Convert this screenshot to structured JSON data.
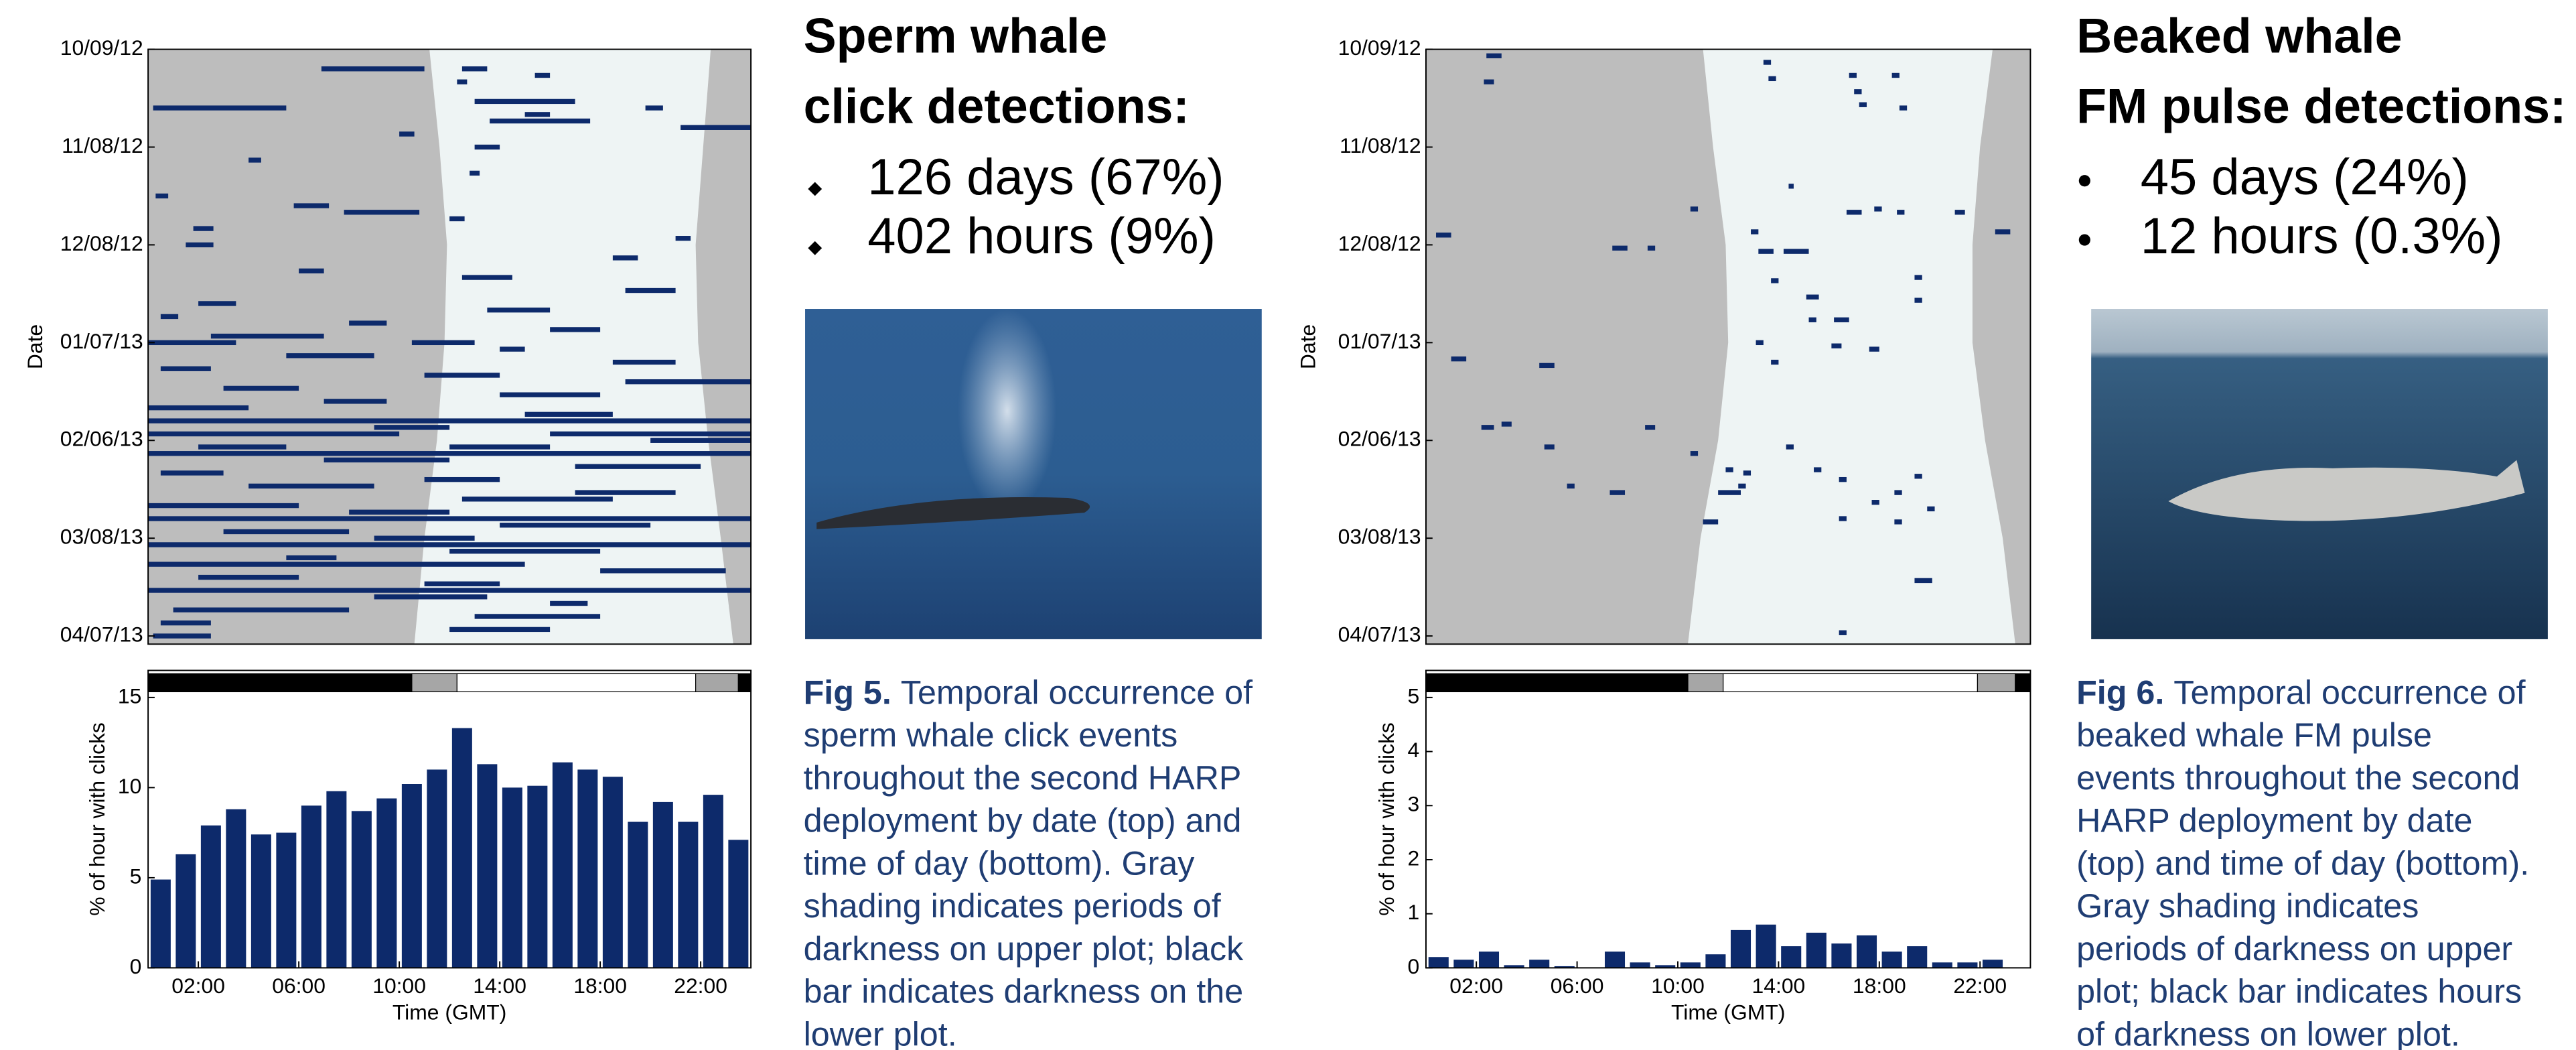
{
  "chart_data": [
    {
      "type": "raster",
      "ylabel": "Date",
      "xlim": [
        0,
        24
      ],
      "ylim": [
        0,
        182.5
      ],
      "yticks": [
        {
          "value": 0,
          "label": "10/09/12"
        },
        {
          "value": 30,
          "label": "11/08/12"
        },
        {
          "value": 60,
          "label": "12/08/12"
        },
        {
          "value": 90,
          "label": "01/07/13"
        },
        {
          "value": 120,
          "label": "02/06/13"
        },
        {
          "value": 150,
          "label": "03/08/13"
        },
        {
          "value": 180,
          "label": "04/07/13"
        }
      ],
      "darkness_color": "#bdbdbd",
      "daylight_color": "#eef4f4",
      "color": "#0d2a6b",
      "daylight_days": [
        0,
        30,
        60,
        90,
        120,
        150,
        182.5
      ],
      "sunrise": [
        11.2,
        11.6,
        11.9,
        11.8,
        11.5,
        11.0,
        10.6
      ],
      "sunset": [
        22.4,
        22.1,
        21.8,
        21.9,
        22.3,
        22.8,
        23.3
      ],
      "detections": [
        [
          6,
          6.9,
          11.0
        ],
        [
          6,
          12.5,
          13.5
        ],
        [
          8,
          15.4,
          16.0
        ],
        [
          10,
          12.3,
          12.7
        ],
        [
          16,
          13.0,
          17.0
        ],
        [
          18,
          0.2,
          5.5
        ],
        [
          18,
          19.8,
          20.5
        ],
        [
          20,
          15.0,
          16.0
        ],
        [
          22,
          13.6,
          17.6
        ],
        [
          24,
          21.2,
          24.0
        ],
        [
          26,
          10.0,
          10.6
        ],
        [
          30,
          13.0,
          14.0
        ],
        [
          34,
          4.0,
          4.5
        ],
        [
          38,
          12.8,
          13.2
        ],
        [
          45,
          0.3,
          0.8
        ],
        [
          48,
          5.8,
          7.2
        ],
        [
          50,
          7.8,
          10.8
        ],
        [
          52,
          12.0,
          12.6
        ],
        [
          55,
          1.8,
          2.6
        ],
        [
          58,
          21.0,
          21.6
        ],
        [
          60,
          1.5,
          2.6
        ],
        [
          64,
          18.5,
          19.5
        ],
        [
          68,
          6.0,
          7.0
        ],
        [
          70,
          12.5,
          14.5
        ],
        [
          74,
          19.0,
          21.0
        ],
        [
          78,
          2.0,
          3.5
        ],
        [
          80,
          13.5,
          16.0
        ],
        [
          82,
          0.5,
          1.2
        ],
        [
          84,
          8.0,
          9.5
        ],
        [
          86,
          16.0,
          18.0
        ],
        [
          88,
          2.5,
          7.0
        ],
        [
          90,
          0,
          3.5
        ],
        [
          90,
          10.5,
          13.0
        ],
        [
          92,
          14.0,
          15.0
        ],
        [
          94,
          5.5,
          9.0
        ],
        [
          96,
          18.5,
          21.0
        ],
        [
          98,
          0.5,
          2.5
        ],
        [
          100,
          11.0,
          14.0
        ],
        [
          102,
          19.0,
          24.0
        ],
        [
          104,
          3.0,
          6.0
        ],
        [
          106,
          14.0,
          18.0
        ],
        [
          108,
          7.0,
          9.5
        ],
        [
          110,
          0,
          4.0
        ],
        [
          112,
          15.0,
          18.5
        ],
        [
          114,
          0,
          24.0
        ],
        [
          116,
          9.0,
          12.0
        ],
        [
          118,
          0,
          10.0
        ],
        [
          118,
          16.0,
          24.0
        ],
        [
          120,
          20.0,
          24.0
        ],
        [
          122,
          2.0,
          5.5
        ],
        [
          122,
          12.0,
          16.0
        ],
        [
          124,
          0,
          24.0
        ],
        [
          126,
          7.0,
          12.0
        ],
        [
          128,
          17.0,
          22.0
        ],
        [
          130,
          0.5,
          3.0
        ],
        [
          132,
          11.0,
          14.0
        ],
        [
          134,
          4.0,
          9.0
        ],
        [
          136,
          17.0,
          21.0
        ],
        [
          138,
          12.5,
          18.5
        ],
        [
          140,
          0,
          6.0
        ],
        [
          142,
          8.0,
          12.0
        ],
        [
          144,
          0,
          24.0
        ],
        [
          146,
          14.0,
          20.0
        ],
        [
          148,
          3.0,
          8.0
        ],
        [
          150,
          9.0,
          13.0
        ],
        [
          152,
          0,
          24.0
        ],
        [
          154,
          12.0,
          18.0
        ],
        [
          156,
          5.5,
          7.5
        ],
        [
          158,
          0,
          15.0
        ],
        [
          160,
          18.0,
          23.0
        ],
        [
          162,
          2.0,
          6.0
        ],
        [
          164,
          11.0,
          14.0
        ],
        [
          166,
          0,
          24.0
        ],
        [
          168,
          9.0,
          13.5
        ],
        [
          170,
          16.0,
          17.5
        ],
        [
          172,
          1.0,
          8.0
        ],
        [
          174,
          13.0,
          18.0
        ],
        [
          176,
          0.5,
          2.5
        ],
        [
          178,
          12.0,
          16.0
        ],
        [
          180,
          0.2,
          2.5
        ]
      ]
    },
    {
      "type": "histogram",
      "xlabel": "Time (GMT)",
      "ylabel": "% of hour with clicks",
      "color": "#0d2a6b",
      "xlim": [
        0,
        24
      ],
      "ylim": [
        0,
        16.5
      ],
      "yticks": [
        0,
        5,
        10,
        15
      ],
      "xticks": [
        {
          "value": 2,
          "label": "02:00"
        },
        {
          "value": 6,
          "label": "06:00"
        },
        {
          "value": 10,
          "label": "10:00"
        },
        {
          "value": 14,
          "label": "14:00"
        },
        {
          "value": 18,
          "label": "18:00"
        },
        {
          "value": 22,
          "label": "22:00"
        }
      ],
      "bins": [
        0,
        1,
        2,
        3,
        4,
        5,
        6,
        7,
        8,
        9,
        10,
        11,
        12,
        13,
        14,
        15,
        16,
        17,
        18,
        19,
        20,
        21,
        22,
        23,
        24
      ],
      "values": [
        4.9,
        6.3,
        7.9,
        8.8,
        7.4,
        7.5,
        9.0,
        9.8,
        8.7,
        9.4,
        10.2,
        11.0,
        13.3,
        11.3,
        10.0,
        10.1,
        11.4,
        11.0,
        10.6,
        8.1,
        9.2,
        8.1,
        9.6,
        7.1
      ],
      "darkness_bar": [
        {
          "start": 0,
          "end": 10.5,
          "color": "#000000"
        },
        {
          "start": 10.5,
          "end": 12.3,
          "color": "#a6a6a6"
        },
        {
          "start": 12.3,
          "end": 21.8,
          "color": "#ffffff"
        },
        {
          "start": 21.8,
          "end": 23.5,
          "color": "#a6a6a6"
        },
        {
          "start": 23.5,
          "end": 24,
          "color": "#000000"
        }
      ]
    },
    {
      "type": "raster",
      "ylabel": "Date",
      "xlim": [
        0,
        24
      ],
      "ylim": [
        0,
        182.5
      ],
      "yticks": [
        {
          "value": 0,
          "label": "10/09/12"
        },
        {
          "value": 30,
          "label": "11/08/12"
        },
        {
          "value": 60,
          "label": "12/08/12"
        },
        {
          "value": 90,
          "label": "01/07/13"
        },
        {
          "value": 120,
          "label": "02/06/13"
        },
        {
          "value": 150,
          "label": "03/08/13"
        },
        {
          "value": 180,
          "label": "04/07/13"
        }
      ],
      "darkness_color": "#bdbdbd",
      "daylight_color": "#eef4f4",
      "color": "#0d2a6b",
      "daylight_days": [
        0,
        30,
        60,
        90,
        120,
        150,
        182.5
      ],
      "sunrise": [
        11.0,
        11.4,
        11.9,
        12.0,
        11.6,
        10.9,
        10.4
      ],
      "sunset": [
        22.5,
        22.0,
        21.7,
        21.7,
        22.2,
        22.9,
        23.4
      ],
      "detections": [
        [
          2,
          2.4,
          3.0
        ],
        [
          10,
          2.3,
          2.7
        ],
        [
          57,
          0.4,
          1.0
        ],
        [
          95,
          1.0,
          1.6
        ],
        [
          97,
          4.5,
          5.1
        ],
        [
          116,
          2.2,
          2.7
        ],
        [
          115,
          3.0,
          3.4
        ],
        [
          122,
          4.7,
          5.1
        ],
        [
          134,
          5.6,
          5.9
        ],
        [
          136,
          7.3,
          7.9
        ],
        [
          116,
          8.7,
          9.1
        ],
        [
          61,
          7.4,
          8.0
        ],
        [
          61,
          8.8,
          9.1
        ],
        [
          145,
          11.0,
          11.6
        ],
        [
          136,
          11.6,
          12.5
        ],
        [
          124,
          10.5,
          10.8
        ],
        [
          129,
          11.9,
          12.2
        ],
        [
          130,
          12.6,
          12.9
        ],
        [
          4,
          13.4,
          13.7
        ],
        [
          9,
          13.6,
          13.9
        ],
        [
          42,
          14.4,
          14.6
        ],
        [
          49,
          10.5,
          10.8
        ],
        [
          56,
          12.9,
          13.2
        ],
        [
          62,
          13.2,
          13.8
        ],
        [
          62,
          14.2,
          15.2
        ],
        [
          71,
          13.7,
          14.0
        ],
        [
          76,
          15.1,
          15.6
        ],
        [
          83,
          16.2,
          16.8
        ],
        [
          83,
          15.2,
          15.5
        ],
        [
          91,
          16.1,
          16.5
        ],
        [
          92,
          17.6,
          18.0
        ],
        [
          90,
          13.1,
          13.4
        ],
        [
          96,
          13.7,
          14.0
        ],
        [
          8,
          16.8,
          17.1
        ],
        [
          13,
          17.0,
          17.3
        ],
        [
          17,
          17.2,
          17.5
        ],
        [
          8,
          18.5,
          18.8
        ],
        [
          18,
          18.8,
          19.1
        ],
        [
          50,
          16.7,
          17.3
        ],
        [
          49,
          17.8,
          18.1
        ],
        [
          50,
          18.7,
          19.0
        ],
        [
          70,
          19.4,
          19.7
        ],
        [
          77,
          19.4,
          19.7
        ],
        [
          50,
          21.0,
          21.4
        ],
        [
          56,
          22.6,
          23.2
        ],
        [
          122,
          14.3,
          14.6
        ],
        [
          129,
          15.4,
          15.7
        ],
        [
          132,
          16.4,
          16.7
        ],
        [
          139,
          17.7,
          18.0
        ],
        [
          136,
          18.6,
          18.9
        ],
        [
          131,
          19.4,
          19.7
        ],
        [
          141,
          19.9,
          20.2
        ],
        [
          145,
          18.6,
          18.9
        ],
        [
          144,
          16.4,
          16.7
        ],
        [
          163,
          19.4,
          20.1
        ],
        [
          179,
          16.4,
          16.7
        ],
        [
          134,
          12.4,
          12.7
        ]
      ]
    },
    {
      "type": "histogram",
      "xlabel": "Time (GMT)",
      "ylabel": "% of hour with clicks",
      "color": "#0d2a6b",
      "xlim": [
        0,
        24
      ],
      "ylim": [
        0,
        5.5
      ],
      "yticks": [
        0,
        1,
        2,
        3,
        4,
        5
      ],
      "xticks": [
        {
          "value": 2,
          "label": "02:00"
        },
        {
          "value": 6,
          "label": "06:00"
        },
        {
          "value": 10,
          "label": "10:00"
        },
        {
          "value": 14,
          "label": "14:00"
        },
        {
          "value": 18,
          "label": "18:00"
        },
        {
          "value": 22,
          "label": "22:00"
        }
      ],
      "bins": [
        0,
        1,
        2,
        3,
        4,
        5,
        6,
        7,
        8,
        9,
        10,
        11,
        12,
        13,
        14,
        15,
        16,
        17,
        18,
        19,
        20,
        21,
        22,
        23,
        24
      ],
      "values": [
        0.2,
        0.15,
        0.3,
        0.05,
        0.15,
        0.03,
        0,
        0.3,
        0.1,
        0.05,
        0.1,
        0.25,
        0.7,
        0.8,
        0.4,
        0.65,
        0.45,
        0.6,
        0.3,
        0.4,
        0.1,
        0.1,
        0.15,
        0
      ],
      "darkness_bar": [
        {
          "start": 0,
          "end": 10.4,
          "color": "#000000"
        },
        {
          "start": 10.4,
          "end": 11.8,
          "color": "#a6a6a6"
        },
        {
          "start": 11.8,
          "end": 21.9,
          "color": "#ffffff"
        },
        {
          "start": 21.9,
          "end": 23.4,
          "color": "#a6a6a6"
        },
        {
          "start": 23.4,
          "end": 24,
          "color": "#000000"
        }
      ]
    }
  ],
  "panels": [
    {
      "title": [
        "Sperm whale",
        "click detections:"
      ],
      "bullets": [
        "126 days (67%)",
        "402 hours (9%)"
      ],
      "caption_label": "Fig 5.",
      "caption": [
        "Temporal occurrence of",
        "sperm whale click events",
        "throughout the second HARP",
        "deployment by date (top) and",
        "time of day (bottom). Gray",
        "shading indicates periods of",
        "darkness on upper plot; black",
        "bar indicates darkness on the",
        "lower plot."
      ]
    },
    {
      "title": [
        "Beaked whale",
        "FM pulse detections:"
      ],
      "bullets": [
        "45 days (24%)",
        "12 hours (0.3%)"
      ],
      "caption_label": "Fig 6.",
      "caption": [
        "Temporal occurrence of",
        "beaked whale FM pulse",
        "events throughout the second",
        "HARP deployment by date",
        "(top) and time of day (bottom).",
        "Gray shading indicates",
        "periods of darkness on upper",
        "plot; black bar indicates hours",
        "of darkness on lower plot."
      ]
    }
  ]
}
